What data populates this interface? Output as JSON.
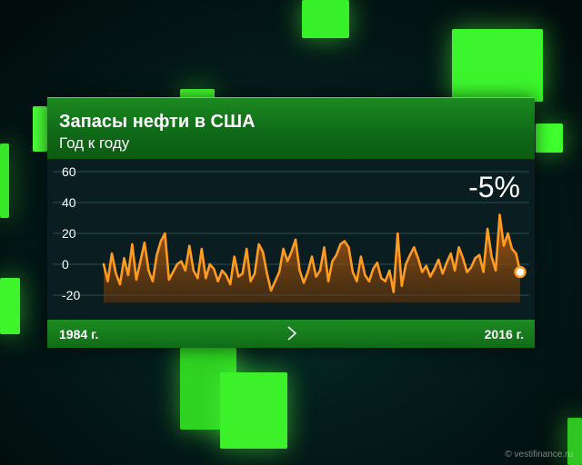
{
  "panel": {
    "title": "Запасы нефти в США",
    "subtitle": "Год к году",
    "headline_value": "-5%",
    "footer_left": "1984 г.",
    "footer_right": "2016 г."
  },
  "watermark": "© vestifinance.ru",
  "colors": {
    "background": "#041c1b",
    "header_green": "#1c8a21",
    "chart_background": "#0a1d20",
    "line": "#ff9b1f",
    "area": "#b35a0e",
    "cube": "#3dff2a"
  },
  "chart_data": {
    "type": "area",
    "title": "Запасы нефти в США",
    "subtitle": "Год к году",
    "x_start_label": "1984 г.",
    "x_end_label": "2016 г.",
    "ylim": [
      -20,
      60
    ],
    "yticks": [
      60,
      40,
      20,
      0,
      -20
    ],
    "grid": true,
    "last_value_label": "-5%",
    "values": [
      0,
      -11,
      7,
      -6,
      -13,
      4,
      -7,
      13,
      -10,
      2,
      14,
      -4,
      -11,
      6,
      15,
      20,
      -10,
      -5,
      0,
      2,
      -4,
      12,
      -4,
      -9,
      10,
      -9,
      0,
      -3,
      -11,
      -4,
      -7,
      -13,
      5,
      -8,
      -6,
      10,
      -11,
      -6,
      13,
      8,
      -6,
      -17,
      -11,
      -5,
      10,
      2,
      8,
      16,
      -4,
      -12,
      -5,
      5,
      -8,
      -4,
      11,
      -11,
      2,
      6,
      13,
      15,
      11,
      -5,
      -11,
      5,
      -7,
      -11,
      -3,
      1,
      -9,
      -11,
      -4,
      -18,
      20,
      -14,
      0,
      6,
      11,
      4,
      -5,
      -1,
      -8,
      -3,
      3,
      -6,
      1,
      7,
      -4,
      11,
      4,
      -5,
      -2,
      4,
      6,
      -5,
      23,
      5,
      -4,
      32,
      12,
      20,
      10,
      7,
      -5
    ]
  }
}
